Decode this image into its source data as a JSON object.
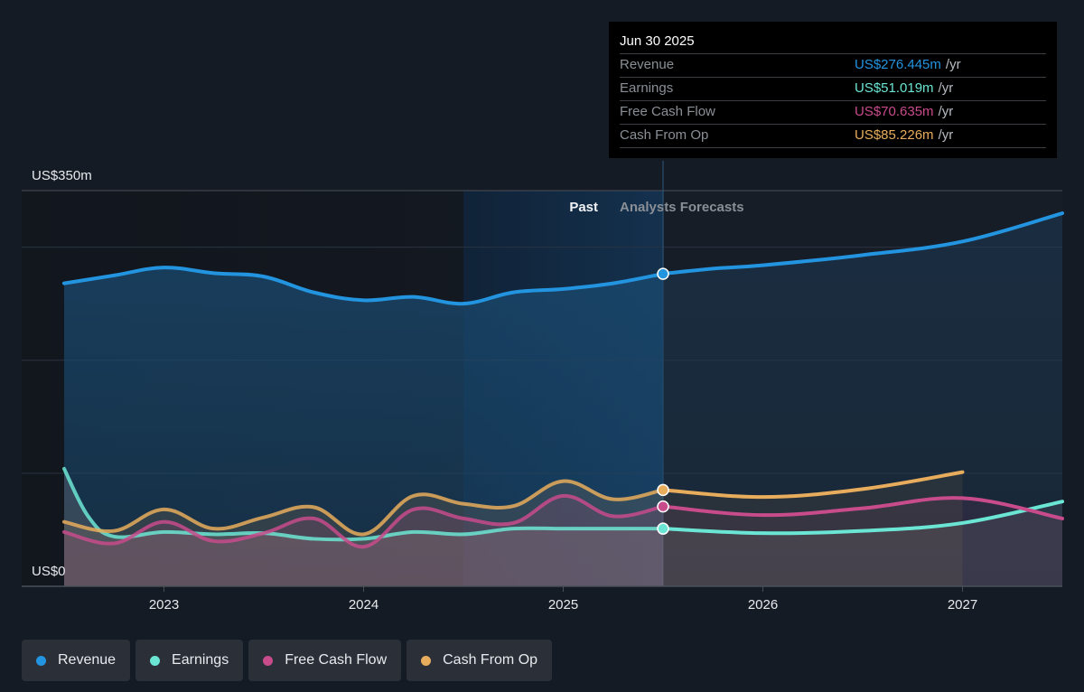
{
  "chart_data": {
    "type": "area",
    "title": "",
    "xlabel": "",
    "ylabel": "",
    "y_unit": "US$m",
    "ylim": [
      0,
      350
    ],
    "xlim": [
      2022.5,
      2027.5
    ],
    "y_tick_labels": [
      "US$350m",
      "US$0"
    ],
    "x_ticks": [
      2023,
      2024,
      2025,
      2026,
      2027
    ],
    "x_tick_labels": [
      "2023",
      "2024",
      "2025",
      "2026",
      "2027"
    ],
    "grid": true,
    "divider_x": 2025.5,
    "past_label": "Past",
    "forecast_label": "Analysts Forecasts",
    "highlight_range": [
      2024.5,
      2025.5
    ],
    "series": [
      {
        "name": "Revenue",
        "color": "#2394df",
        "past": [
          [
            2022.5,
            268
          ],
          [
            2022.75,
            275
          ],
          [
            2023.0,
            282
          ],
          [
            2023.25,
            277
          ],
          [
            2023.5,
            274
          ],
          [
            2023.75,
            260
          ],
          [
            2024.0,
            253
          ],
          [
            2024.25,
            256
          ],
          [
            2024.5,
            250
          ],
          [
            2024.75,
            260
          ],
          [
            2025.0,
            263
          ],
          [
            2025.25,
            268
          ],
          [
            2025.5,
            276.4
          ]
        ],
        "forecast": [
          [
            2025.5,
            276.4
          ],
          [
            2025.75,
            281
          ],
          [
            2026.0,
            284
          ],
          [
            2026.5,
            293
          ],
          [
            2027.0,
            305
          ],
          [
            2027.5,
            330
          ]
        ]
      },
      {
        "name": "Earnings",
        "color": "#6ce6d4",
        "past": [
          [
            2022.5,
            104
          ],
          [
            2022.62,
            62
          ],
          [
            2022.75,
            44
          ],
          [
            2023.0,
            48
          ],
          [
            2023.25,
            46
          ],
          [
            2023.5,
            47
          ],
          [
            2023.75,
            42
          ],
          [
            2024.0,
            42
          ],
          [
            2024.25,
            48
          ],
          [
            2024.5,
            46
          ],
          [
            2024.75,
            51
          ],
          [
            2025.0,
            51
          ],
          [
            2025.25,
            51
          ],
          [
            2025.5,
            51.0
          ]
        ],
        "forecast": [
          [
            2025.5,
            51.0
          ],
          [
            2026.0,
            47
          ],
          [
            2026.5,
            49
          ],
          [
            2027.0,
            56
          ],
          [
            2027.5,
            75
          ]
        ]
      },
      {
        "name": "Free Cash Flow",
        "color": "#c84b8c",
        "past": [
          [
            2022.5,
            48
          ],
          [
            2022.75,
            38
          ],
          [
            2023.0,
            57
          ],
          [
            2023.25,
            40
          ],
          [
            2023.5,
            47
          ],
          [
            2023.75,
            60
          ],
          [
            2024.0,
            35
          ],
          [
            2024.25,
            68
          ],
          [
            2024.5,
            60
          ],
          [
            2024.75,
            56
          ],
          [
            2025.0,
            80
          ],
          [
            2025.25,
            62
          ],
          [
            2025.5,
            70.6
          ]
        ],
        "forecast": [
          [
            2025.5,
            70.6
          ],
          [
            2026.0,
            63
          ],
          [
            2026.5,
            69
          ],
          [
            2027.0,
            78
          ],
          [
            2027.5,
            60
          ]
        ]
      },
      {
        "name": "Cash From Op",
        "color": "#e8ad5c",
        "past": [
          [
            2022.5,
            57
          ],
          [
            2022.75,
            49
          ],
          [
            2023.0,
            68
          ],
          [
            2023.25,
            51
          ],
          [
            2023.5,
            61
          ],
          [
            2023.75,
            70
          ],
          [
            2024.0,
            46
          ],
          [
            2024.25,
            80
          ],
          [
            2024.5,
            73
          ],
          [
            2024.75,
            71
          ],
          [
            2025.0,
            93
          ],
          [
            2025.25,
            77
          ],
          [
            2025.5,
            85.2
          ]
        ],
        "forecast": [
          [
            2025.5,
            85.2
          ],
          [
            2026.0,
            79
          ],
          [
            2026.5,
            86
          ],
          [
            2027.0,
            101
          ]
        ]
      }
    ],
    "tooltip": {
      "date": "Jun 30 2025",
      "rows": [
        {
          "label": "Revenue",
          "value": "US$276.445m",
          "unit": "/yr",
          "color": "#2394df"
        },
        {
          "label": "Earnings",
          "value": "US$51.019m",
          "unit": "/yr",
          "color": "#6ce6d4"
        },
        {
          "label": "Free Cash Flow",
          "value": "US$70.635m",
          "unit": "/yr",
          "color": "#c84b8c"
        },
        {
          "label": "Cash From Op",
          "value": "US$85.226m",
          "unit": "/yr",
          "color": "#e8ad5c"
        }
      ]
    },
    "legend": [
      {
        "label": "Revenue",
        "color": "#2394df"
      },
      {
        "label": "Earnings",
        "color": "#6ce6d4"
      },
      {
        "label": "Free Cash Flow",
        "color": "#c84b8c"
      },
      {
        "label": "Cash From Op",
        "color": "#e8ad5c"
      }
    ],
    "legend_position": "bottom-left"
  }
}
